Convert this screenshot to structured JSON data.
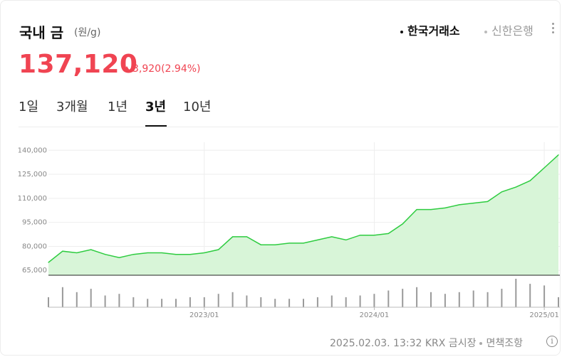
{
  "header": {
    "title": "국내 금",
    "unit": "(원/g)",
    "exchanges": [
      "한국거래소",
      "신한은행"
    ],
    "active_exchange": "한국거래소"
  },
  "quote": {
    "price": "137,120",
    "change": "3,920",
    "change_pct": "(2.94%)",
    "direction": "up",
    "up_color": "#f04452"
  },
  "tabs": [
    "1일",
    "3개월",
    "1년",
    "3년",
    "10년"
  ],
  "active_tab": "3년",
  "footer": {
    "timestamp": "2025.02.03. 13:32",
    "source": "KRX 금시장",
    "disclaimer": "면책조항",
    "info_icon": "info-icon"
  },
  "chart_data": {
    "type": "area",
    "line_color": "#2ecc40",
    "fill_color": "#d8f5d8",
    "ylim": [
      62000,
      145000
    ],
    "y_ticks": [
      65000,
      80000,
      95000,
      110000,
      125000,
      140000
    ],
    "y_tick_labels": [
      "65,000",
      "80,000",
      "95,000",
      "110,000",
      "125,000",
      "140,000"
    ],
    "x_range": [
      "2022-02",
      "2025-02"
    ],
    "x_ticks": [
      "2023/01",
      "2024/01",
      "2025/01"
    ],
    "grid": true,
    "x": [
      "2022-02",
      "2022-03",
      "2022-04",
      "2022-05",
      "2022-06",
      "2022-07",
      "2022-08",
      "2022-09",
      "2022-10",
      "2022-11",
      "2022-12",
      "2023-01",
      "2023-02",
      "2023-03",
      "2023-04",
      "2023-05",
      "2023-06",
      "2023-07",
      "2023-08",
      "2023-09",
      "2023-10",
      "2023-11",
      "2023-12",
      "2024-01",
      "2024-02",
      "2024-03",
      "2024-04",
      "2024-05",
      "2024-06",
      "2024-07",
      "2024-08",
      "2024-09",
      "2024-10",
      "2024-11",
      "2024-12",
      "2025-01",
      "2025-02"
    ],
    "price": [
      70000,
      77000,
      76000,
      78000,
      75000,
      73000,
      75000,
      76000,
      76000,
      75000,
      75000,
      76000,
      78000,
      86000,
      86000,
      81000,
      81000,
      82000,
      82000,
      84000,
      86000,
      84000,
      87000,
      87000,
      88000,
      94000,
      103000,
      103000,
      104000,
      106000,
      107000,
      108000,
      114000,
      117000,
      121000,
      129000,
      137120
    ],
    "volume": [
      30,
      60,
      45,
      55,
      35,
      40,
      30,
      25,
      25,
      25,
      30,
      30,
      40,
      45,
      35,
      30,
      25,
      25,
      25,
      30,
      35,
      30,
      35,
      40,
      50,
      55,
      60,
      45,
      40,
      45,
      50,
      45,
      55,
      85,
      70,
      65,
      30
    ]
  }
}
